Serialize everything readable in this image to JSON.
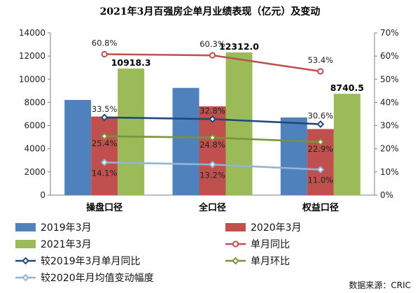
{
  "chart_data": {
    "type": "bar",
    "title": "2021年3月百强房企单月业绩表现（亿元）及变动",
    "categories": [
      "操盘口径",
      "全口径",
      "权益口径"
    ],
    "left_axis": {
      "range": [
        0,
        14000
      ],
      "ticks": [
        "0",
        "2000",
        "4000",
        "6000",
        "8000",
        "10000",
        "12000",
        "14000"
      ]
    },
    "right_axis": {
      "range": [
        0,
        70
      ],
      "ticks": [
        "0%",
        "10%",
        "20%",
        "30%",
        "40%",
        "50%",
        "60%",
        "70%"
      ]
    },
    "bar_series": [
      {
        "name": "2019年3月",
        "color": "#4f81bd",
        "values": [
          8210,
          9250,
          6700
        ]
      },
      {
        "name": "2020年3月",
        "color": "#c0504d",
        "values": [
          6780,
          7660,
          5700
        ]
      },
      {
        "name": "2021年3月",
        "color": "#9bbb59",
        "values": [
          10918.3,
          12312.0,
          8740.5
        ],
        "labels": [
          "10918.3",
          "12312.0",
          "8740.5"
        ]
      }
    ],
    "line_series": [
      {
        "name": "单月同比",
        "color": "#c0504d",
        "marker": "circle",
        "values": [
          60.8,
          60.3,
          53.4
        ],
        "labels": [
          "60.8%",
          "60.3%",
          "53.4%"
        ]
      },
      {
        "name": "较2019年3月单月同比",
        "color": "#1f497d",
        "marker": "diamond",
        "values": [
          33.5,
          32.8,
          30.6
        ],
        "labels": [
          "33.5%",
          "32.8%",
          "30.6%"
        ]
      },
      {
        "name": "单月环比",
        "color": "#77933c",
        "marker": "diamond",
        "values": [
          25.4,
          24.8,
          22.9
        ],
        "labels": [
          "25.4%",
          "24.8%",
          "22.9%"
        ]
      },
      {
        "name": "较2020年月均值变动幅度",
        "color": "#95b3d7",
        "marker": "diamond",
        "values": [
          14.1,
          13.2,
          11.0
        ],
        "labels": [
          "14.1%",
          "13.2%",
          "11.0%"
        ]
      }
    ],
    "legend_order": [
      "2019年3月",
      "2020年3月",
      "2021年3月",
      "单月同比",
      "较2019年3月单月同比",
      "单月环比",
      "较2020年月均值变动幅度"
    ],
    "legend_position": "bottom",
    "source": "数据来源：CRIC"
  }
}
